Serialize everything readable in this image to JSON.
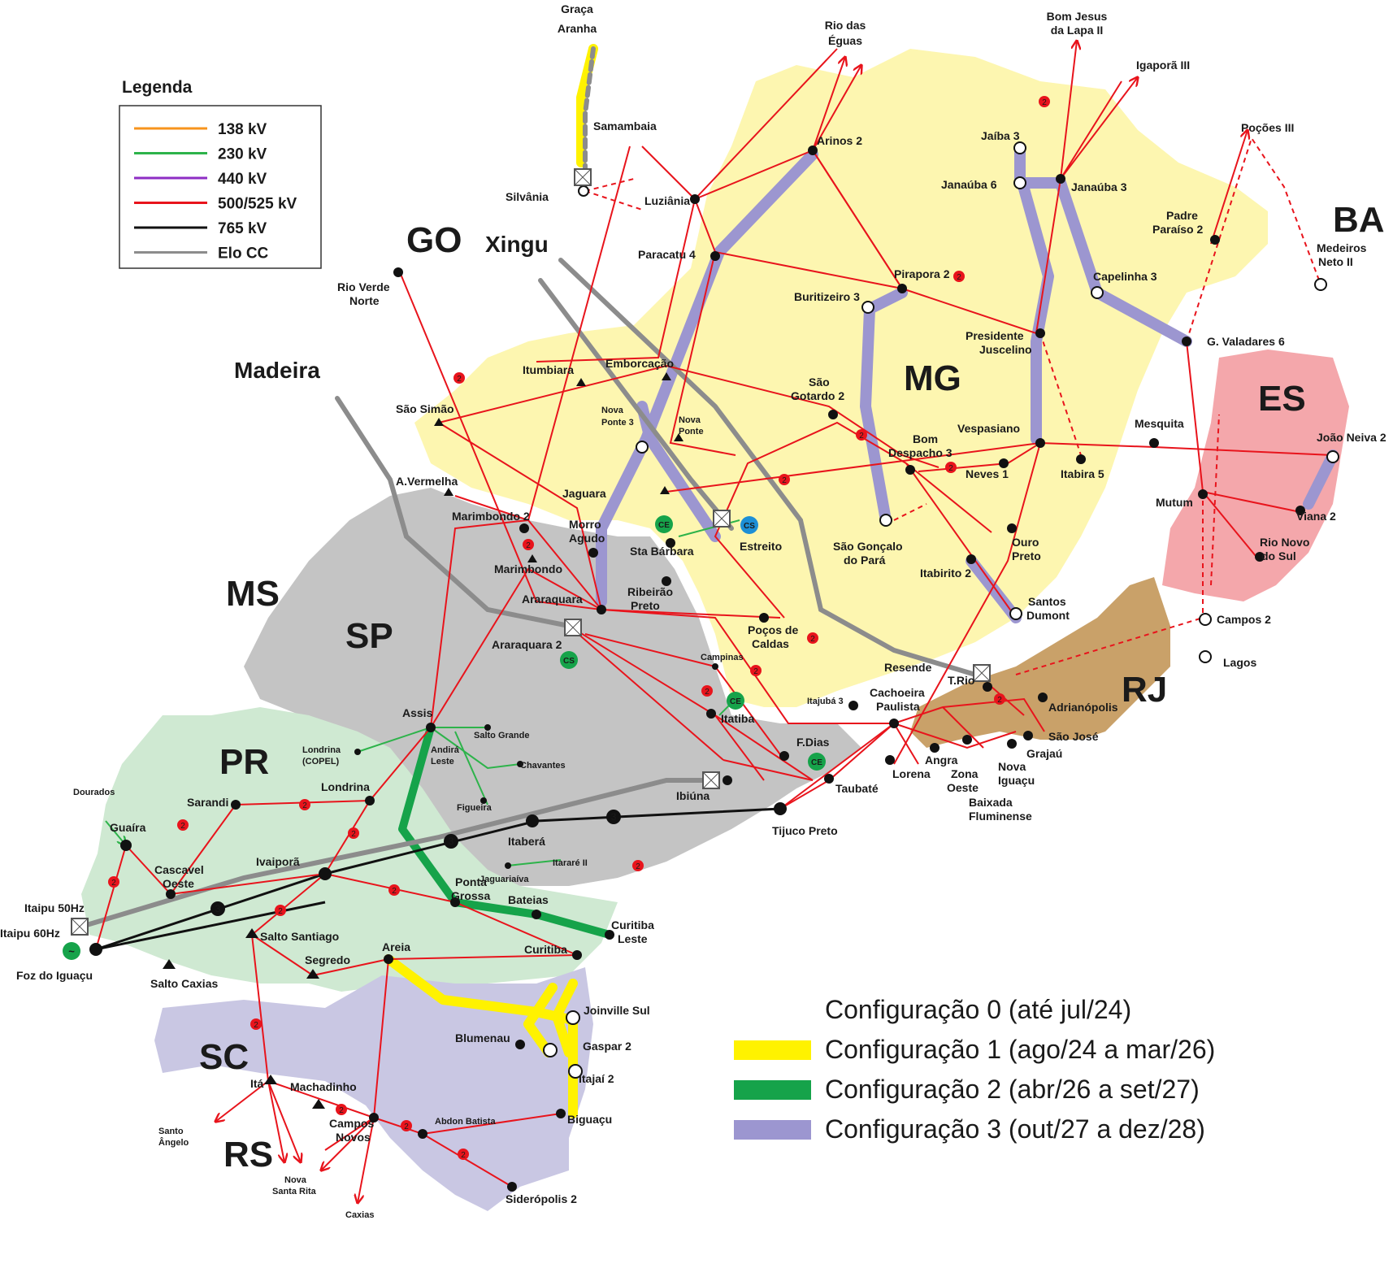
{
  "legend": {
    "title": "Legenda",
    "items": [
      {
        "label": "138 kV",
        "color": "#f7941d"
      },
      {
        "label": "230 kV",
        "color": "#2db34a"
      },
      {
        "label": "440 kV",
        "color": "#8e2ec4"
      },
      {
        "label": "500/525 kV",
        "color": "#e8141c"
      },
      {
        "label": "765 kV",
        "color": "#111111"
      },
      {
        "label": "Elo CC",
        "color": "#8c8c8c"
      }
    ]
  },
  "states": {
    "go": "GO",
    "ms": "MS",
    "sp": "SP",
    "mg": "MG",
    "es": "ES",
    "rj": "RJ",
    "pr": "PR",
    "sc": "SC",
    "rs": "RS",
    "ba": "BA"
  },
  "state_colors": {
    "mg": "#fdf6b0",
    "sp": "#c4c4c4",
    "pr": "#cfe9d2",
    "sc": "#c9c7e3",
    "rj": "#c9a169",
    "es": "#f4a7ab"
  },
  "dc_links": {
    "madeira": "Madeira",
    "xingu": "Xingu",
    "graca_aranha": [
      "Graça",
      "Aranha"
    ],
    "itaipu50": "Itaipu 50Hz",
    "itaipu60": "Itaipu 60Hz"
  },
  "configurations": [
    {
      "label": "Configuração 0 (até jul/24)",
      "color": ""
    },
    {
      "label": "Configuração 1 (ago/24 a mar/26)",
      "color": "#fff200"
    },
    {
      "label": "Configuração 2 (abr/26 a set/27)",
      "color": "#16a34a"
    },
    {
      "label": "Configuração 3 (out/27 a dez/28)",
      "color": "#9c96d0"
    }
  ],
  "substations": {
    "samambaia": "Samambaia",
    "silvania": "Silvânia",
    "luziania": "Luziânia",
    "arinos2": "Arinos 2",
    "rio_das_eguas": [
      "Rio das",
      "Éguas"
    ],
    "bom_jesus": [
      "Bom Jesus",
      "da Lapa II"
    ],
    "igapora": "Igaporã III",
    "jaiba3": "Jaíba 3",
    "janauba6": "Janaúba 6",
    "janauba3": "Janaúba 3",
    "pocoes": "Poções III",
    "padre_paraiso": [
      "Padre",
      "Paraíso 2"
    ],
    "medeiros_neto": [
      "Medeiros",
      "Neto II"
    ],
    "paracatu4": "Paracatu 4",
    "rio_verde": [
      "Rio Verde",
      "Norte"
    ],
    "capelinha3": "Capelinha 3",
    "pirapora2": "Pirapora 2",
    "buritizeiro3": "Buritizeiro 3",
    "presidente_juscelino": [
      "Presidente",
      "Juscelino"
    ],
    "gvaladares6": "G. Valadares 6",
    "itumbiara": "Itumbiara",
    "emborcacao": "Emborcação",
    "sao_simao": "São Simão",
    "sao_gotardo": [
      "São",
      "Gotardo 2"
    ],
    "nova_ponte3": [
      "Nova",
      "Ponte 3"
    ],
    "nova_ponte": [
      "Nova",
      "Ponte"
    ],
    "vespasiano": "Vespasiano",
    "mesquita": "Mesquita",
    "bom_despacho": [
      "Bom",
      "Despacho 3"
    ],
    "neves1": "Neves 1",
    "itabira5": "Itabira 5",
    "joao_neiva": "João Neiva 2",
    "avermelha": "A.Vermelha",
    "jaguara": "Jaguara",
    "mutum": "Mutum",
    "viana2": "Viana 2",
    "marimbondo2": "Marimbondo 2",
    "morro_agudo": [
      "Morro",
      "Agudo"
    ],
    "sta_barbara": "Sta Bárbara",
    "estreito": "Estreito",
    "sao_goncalo": [
      "São Gonçalo",
      "do Pará"
    ],
    "ouro_preto": [
      "Ouro",
      "Preto"
    ],
    "rio_novo": [
      "Rio Novo",
      "do Sul"
    ],
    "marimbondo": "Marimbondo",
    "itabirito": "Itabirito 2",
    "araraquara": "Araraquara",
    "ribeirao_preto": [
      "Ribeirão",
      "Preto"
    ],
    "santos_dumont": [
      "Santos",
      "Dumont"
    ],
    "pocos_caldas": [
      "Poços de",
      "Caldas"
    ],
    "campos2": "Campos 2",
    "araraquara2": "Araraquara 2",
    "lagos": "Lagos",
    "campinas": "Campinas",
    "resende": "Resende",
    "trio": "T.Rio",
    "itajuba3": "Itajubá 3",
    "cachoeira_paulista": [
      "Cachoeira",
      "Paulista"
    ],
    "adrianopolis": "Adrianópolis",
    "assis": "Assis",
    "itatiba": "Itatiba",
    "salto_grande": "Salto Grande",
    "londrina_copel": [
      "Londrina",
      "(COPEL)"
    ],
    "sao_jose": "São José",
    "fdias": "F.Dias",
    "grajau": "Grajaú",
    "andira": [
      "Andirá",
      "Leste"
    ],
    "chavantes": "Chavantes",
    "angra": "Angra",
    "zona_oeste": [
      "Zona",
      "Oeste"
    ],
    "nova_iguacu": [
      "Nova",
      "Iguaçu"
    ],
    "lorena": "Lorena",
    "taubate": "Taubaté",
    "dourados": "Dourados",
    "sarandi": "Sarandi",
    "londrina": "Londrina",
    "ibiuna": "Ibiúna",
    "figueira": "Figueira",
    "baixada": [
      "Baixada",
      "Fluminense"
    ],
    "guaira": "Guaíra",
    "tijuco_preto": "Tijuco Preto",
    "itabera": "Itaberá",
    "ivaipora": "Ivaiporã",
    "cascavel": [
      "Cascavel",
      "Oeste"
    ],
    "itarare": "Itararé II",
    "jaguariaiva": "Jaguariaíva",
    "ponta_grossa": [
      "Ponta",
      "Grossa"
    ],
    "bateias": "Bateias",
    "curitiba_leste": [
      "Curitiba",
      "Leste"
    ],
    "salto_santiago": "Salto Santiago",
    "foz": "Foz do Iguaçu",
    "areia": "Areia",
    "curitiba": "Curitiba",
    "segredo": "Segredo",
    "salto_caxias": "Salto Caxias",
    "joinville": "Joinville Sul",
    "blumenau": "Blumenau",
    "gaspar": "Gaspar 2",
    "itajai": "Itajaí 2",
    "ita": "Itá",
    "machadinho": "Machadinho",
    "santo_angelo": [
      "Santo",
      "Ângelo"
    ],
    "campos_novos": [
      "Campos",
      "Novos"
    ],
    "abdon_batista": "Abdon Batista",
    "biguacu": "Biguaçu",
    "nova_santa_rita": [
      "Nova",
      "Santa Rita"
    ],
    "caxias": "Caxias",
    "sideropolis": "Siderópolis 2"
  },
  "circuit_marks": {
    "two": "2",
    "three": "3"
  }
}
